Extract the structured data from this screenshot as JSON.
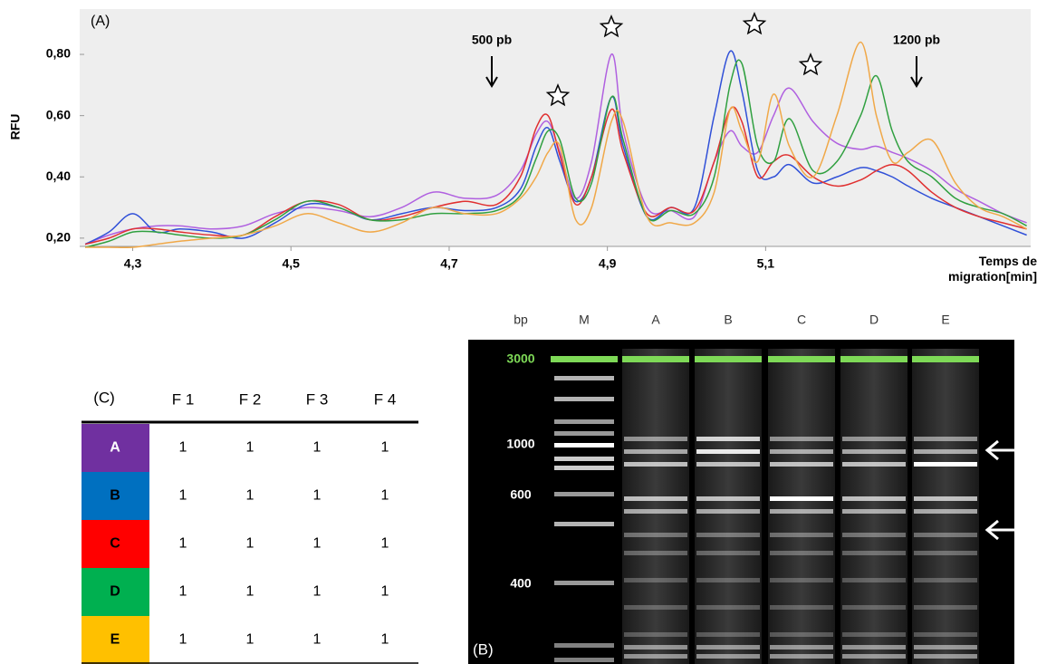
{
  "chart_data": {
    "type": "line",
    "ylabel": "RFU",
    "xlabel": "Temps de migration[min]",
    "annotations": [
      "(A)",
      "500 pb",
      "1200 pb"
    ],
    "background": "#eeeeee",
    "x": [
      4.24,
      4.27,
      4.3,
      4.33,
      4.36,
      4.4,
      4.44,
      4.48,
      4.52,
      4.56,
      4.6,
      4.64,
      4.68,
      4.72,
      4.76,
      4.79,
      4.81,
      4.825,
      4.84,
      4.86,
      4.88,
      4.905,
      4.92,
      4.95,
      4.98,
      5.01,
      5.035,
      5.055,
      5.07,
      5.09,
      5.11,
      5.13,
      5.16,
      5.19,
      5.22,
      5.24,
      5.26,
      5.28,
      5.31,
      5.34,
      5.37,
      5.4,
      5.43
    ],
    "series": [
      {
        "color": "#b060e0",
        "values": [
          0.18,
          0.21,
          0.23,
          0.24,
          0.24,
          0.23,
          0.24,
          0.28,
          0.3,
          0.29,
          0.27,
          0.3,
          0.35,
          0.33,
          0.34,
          0.42,
          0.54,
          0.58,
          0.48,
          0.33,
          0.45,
          0.8,
          0.55,
          0.3,
          0.29,
          0.27,
          0.45,
          0.55,
          0.5,
          0.48,
          0.6,
          0.69,
          0.58,
          0.51,
          0.49,
          0.5,
          0.48,
          0.46,
          0.42,
          0.36,
          0.32,
          0.28,
          0.25
        ]
      },
      {
        "color": "#3050d8",
        "values": [
          0.18,
          0.22,
          0.28,
          0.22,
          0.23,
          0.22,
          0.2,
          0.25,
          0.31,
          0.3,
          0.26,
          0.28,
          0.3,
          0.29,
          0.3,
          0.36,
          0.5,
          0.56,
          0.45,
          0.32,
          0.4,
          0.66,
          0.5,
          0.27,
          0.3,
          0.3,
          0.6,
          0.81,
          0.68,
          0.42,
          0.4,
          0.44,
          0.38,
          0.4,
          0.43,
          0.42,
          0.4,
          0.37,
          0.33,
          0.3,
          0.27,
          0.24,
          0.21
        ]
      },
      {
        "color": "#e03030",
        "values": [
          0.18,
          0.2,
          0.23,
          0.23,
          0.22,
          0.21,
          0.21,
          0.27,
          0.32,
          0.31,
          0.26,
          0.27,
          0.3,
          0.32,
          0.31,
          0.4,
          0.56,
          0.6,
          0.47,
          0.31,
          0.4,
          0.62,
          0.48,
          0.28,
          0.3,
          0.29,
          0.45,
          0.62,
          0.58,
          0.4,
          0.45,
          0.47,
          0.4,
          0.37,
          0.39,
          0.42,
          0.44,
          0.42,
          0.35,
          0.3,
          0.27,
          0.25,
          0.23
        ]
      },
      {
        "color": "#30a040",
        "values": [
          0.17,
          0.19,
          0.22,
          0.22,
          0.21,
          0.2,
          0.21,
          0.26,
          0.32,
          0.3,
          0.26,
          0.26,
          0.28,
          0.28,
          0.29,
          0.34,
          0.46,
          0.55,
          0.52,
          0.33,
          0.38,
          0.66,
          0.52,
          0.27,
          0.29,
          0.28,
          0.4,
          0.7,
          0.77,
          0.5,
          0.45,
          0.59,
          0.42,
          0.45,
          0.6,
          0.73,
          0.55,
          0.45,
          0.4,
          0.33,
          0.3,
          0.28,
          0.24
        ]
      },
      {
        "color": "#f0a848",
        "values": [
          0.17,
          0.17,
          0.17,
          0.18,
          0.19,
          0.2,
          0.21,
          0.24,
          0.28,
          0.25,
          0.22,
          0.25,
          0.3,
          0.28,
          0.28,
          0.33,
          0.4,
          0.48,
          0.5,
          0.26,
          0.3,
          0.58,
          0.58,
          0.27,
          0.25,
          0.25,
          0.35,
          0.62,
          0.55,
          0.45,
          0.67,
          0.5,
          0.4,
          0.6,
          0.84,
          0.6,
          0.45,
          0.48,
          0.52,
          0.38,
          0.3,
          0.27,
          0.23
        ]
      }
    ],
    "xlim": [
      4.233,
      5.435
    ],
    "ylim": [
      0.173,
      0.948
    ],
    "xticks": [
      {
        "value": 4.3,
        "label": "4,3"
      },
      {
        "value": 4.5,
        "label": "4,5"
      },
      {
        "value": 4.7,
        "label": "4,7"
      },
      {
        "value": 4.9,
        "label": "4,9"
      },
      {
        "value": 5.1,
        "label": "5,1"
      }
    ],
    "yticks": [
      {
        "value": 0.2,
        "label": "0,20"
      },
      {
        "value": 0.4,
        "label": "0,40"
      },
      {
        "value": 0.6,
        "label": "0,60"
      },
      {
        "value": 0.8,
        "label": "0,80"
      }
    ]
  },
  "table": {
    "label": "(C)",
    "columns": [
      "F 1",
      "F 2",
      "F 3",
      "F 4"
    ],
    "rows": [
      {
        "name": "A",
        "color": "#7030a0",
        "values": [
          1,
          1,
          1,
          1
        ]
      },
      {
        "name": "B",
        "color": "#0070c0",
        "values": [
          1,
          1,
          1,
          1
        ]
      },
      {
        "name": "C",
        "color": "#ff0000",
        "values": [
          1,
          1,
          1,
          1
        ]
      },
      {
        "name": "D",
        "color": "#00b050",
        "values": [
          1,
          1,
          1,
          1
        ]
      },
      {
        "name": "E",
        "color": "#ffc000",
        "values": [
          1,
          1,
          1,
          1
        ]
      }
    ]
  },
  "gel": {
    "label": "(B)",
    "unit": "bp",
    "lanes": [
      "M",
      "A",
      "B",
      "C",
      "D",
      "E"
    ],
    "markers": [
      "3000",
      "1000",
      "600",
      "400"
    ]
  }
}
